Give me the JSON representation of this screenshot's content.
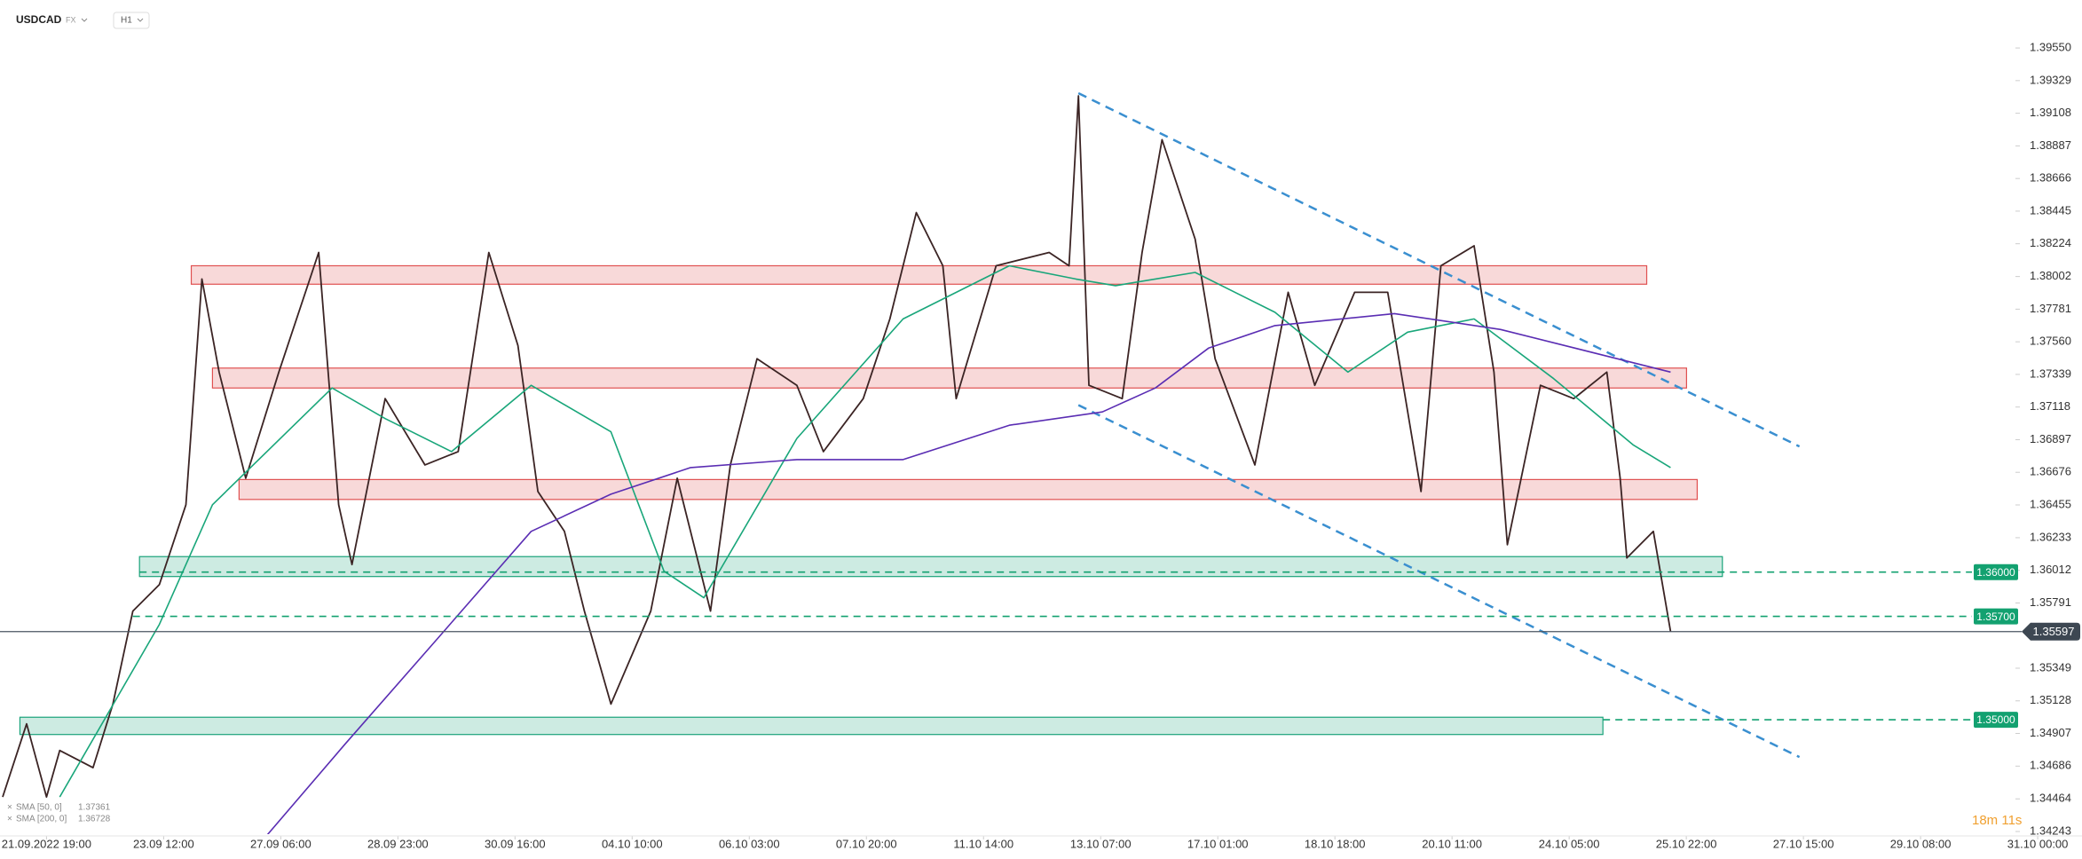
{
  "chart_data": {
    "type": "line",
    "symbol": "USDCAD",
    "market": "FX",
    "interval": "H1",
    "timer": "18m 11s",
    "xlim": [
      -0.397,
      16.81
    ],
    "ylim": [
      1.34195,
      1.39875
    ],
    "xticks": [
      {
        "value": 0,
        "label": "21.09.2022 19:00"
      },
      {
        "value": 1,
        "label": "23.09 12:00"
      },
      {
        "value": 2,
        "label": "27.09 06:00"
      },
      {
        "value": 3,
        "label": "28.09 23:00"
      },
      {
        "value": 4,
        "label": "30.09 16:00"
      },
      {
        "value": 5,
        "label": "04.10 10:00"
      },
      {
        "value": 6,
        "label": "06.10 03:00"
      },
      {
        "value": 7,
        "label": "07.10 20:00"
      },
      {
        "value": 8,
        "label": "11.10 14:00"
      },
      {
        "value": 9,
        "label": "13.10 07:00"
      },
      {
        "value": 10,
        "label": "17.10 01:00"
      },
      {
        "value": 11,
        "label": "18.10 18:00"
      },
      {
        "value": 12,
        "label": "20.10 11:00"
      },
      {
        "value": 13,
        "label": "24.10 05:00"
      },
      {
        "value": 14,
        "label": "25.10 22:00"
      },
      {
        "value": 15,
        "label": "27.10 15:00"
      },
      {
        "value": 16,
        "label": "29.10 08:00"
      },
      {
        "value": 17,
        "label": "31.10 00:00"
      }
    ],
    "yticks": [
      {
        "value": 1.3955,
        "label": "1.39550"
      },
      1.39329,
      1.39108,
      1.38887,
      1.38666,
      1.38445,
      1.38224,
      1.38002,
      1.37781,
      {
        "value": 1.3756,
        "label": "1.37560"
      },
      1.37339,
      1.37118,
      1.36897,
      1.36676,
      1.36455,
      1.36233,
      1.36012,
      1.35791,
      1.35349,
      1.35128,
      1.34907,
      1.34686,
      1.34464,
      1.34243
    ],
    "series": [
      {
        "color": "#3b2424",
        "x": [
          -0.374,
          -0.17,
          0,
          0.113,
          0.397,
          0.567,
          0.737,
          0.964,
          1.19,
          1.327,
          1.474,
          1.701,
          1.984,
          2.324,
          2.494,
          2.608,
          2.891,
          3.231,
          3.515,
          3.776,
          4.025,
          4.195,
          4.422,
          4.592,
          4.819,
          5.159,
          5.385,
          5.669,
          5.839,
          6.066,
          6.406,
          6.633,
          6.973,
          7.2,
          7.426,
          7.653,
          7.766,
          8.107,
          8.56,
          8.73,
          8.81,
          8.9,
          9.184,
          9.354,
          9.524,
          9.807,
          9.977,
          10.317,
          10.601,
          10.828,
          11.168,
          11.451,
          11.735,
          11.905,
          12.188,
          12.358,
          12.472,
          12.755,
          13.039,
          13.322,
          13.435,
          13.492,
          13.719,
          13.866
        ],
        "values": [
          1.34477,
          1.34972,
          1.34477,
          1.34792,
          1.34675,
          1.35106,
          1.35736,
          1.35916,
          1.36456,
          1.37985,
          1.37355,
          1.36636,
          1.37355,
          1.38165,
          1.36456,
          1.36051,
          1.37175,
          1.36726,
          1.36816,
          1.38165,
          1.37535,
          1.36546,
          1.36276,
          1.35736,
          1.35106,
          1.35736,
          1.36636,
          1.35736,
          1.36726,
          1.37445,
          1.37265,
          1.36816,
          1.37175,
          1.37715,
          1.38435,
          1.38075,
          1.37175,
          1.38075,
          1.38165,
          1.38075,
          1.39226,
          1.37265,
          1.37175,
          1.38165,
          1.38929,
          1.38255,
          1.37445,
          1.36726,
          1.37895,
          1.37265,
          1.37895,
          1.37895,
          1.36546,
          1.38075,
          1.3821,
          1.37355,
          1.36186,
          1.37265,
          1.37175,
          1.37355,
          1.36636,
          1.36096,
          1.36276,
          1.35597
        ]
      },
      {
        "color": "#19a67a",
        "x": [
          0.113,
          0.964,
          1.417,
          2.438,
          2.891,
          3.458,
          4.138,
          4.819,
          5.272,
          5.612,
          6.406,
          7.313,
          8.22,
          8.787,
          9.127,
          9.467,
          9.807,
          10.488,
          11.111,
          11.621,
          12.188,
          12.868,
          13.549,
          13.866
        ],
        "values": [
          1.34477,
          1.35646,
          1.36456,
          1.37247,
          1.3704,
          1.36816,
          1.37265,
          1.3695,
          1.36006,
          1.35826,
          1.36905,
          1.37715,
          1.38075,
          1.37985,
          1.3794,
          1.37985,
          1.3803,
          1.3776,
          1.37355,
          1.37625,
          1.37715,
          1.3731,
          1.3686,
          1.36708
        ]
      },
      {
        "color": "#5a2db3",
        "x": [
          1.871,
          2.551,
          3.345,
          4.138,
          4.819,
          5.499,
          6.406,
          7.313,
          8.22,
          9.014,
          9.467,
          9.921,
          10.488,
          11.508,
          12.415,
          13.322,
          13.866
        ],
        "values": [
          1.34207,
          1.34837,
          1.35556,
          1.36276,
          1.36528,
          1.36708,
          1.36762,
          1.36762,
          1.36995,
          1.37085,
          1.37247,
          1.37517,
          1.3767,
          1.37751,
          1.37643,
          1.37463,
          1.37355
        ]
      }
    ],
    "indicators": [
      {
        "name": "SMA [50, 0]",
        "value": 1.37361
      },
      {
        "name": "SMA [200, 0]",
        "value": 1.36728
      }
    ],
    "zones": [
      {
        "x": [
          1.236,
          13.662
        ],
        "y": [
          1.3795,
          1.38075
        ],
        "color": "#e05050"
      },
      {
        "x": [
          1.417,
          14.002
        ],
        "y": [
          1.37247,
          1.37382
        ],
        "color": "#e05050"
      },
      {
        "x": [
          1.644,
          14.093
        ],
        "y": [
          1.36492,
          1.36627
        ],
        "color": "#e05050"
      },
      {
        "x": [
          0.794,
          14.308
        ],
        "y": [
          1.3597,
          1.36105
        ],
        "color": "#1aa37a"
      },
      {
        "x": [
          -0.227,
          13.288
        ],
        "y": [
          1.349,
          1.35017
        ],
        "color": "#1aa37a"
      }
    ],
    "levels": [
      {
        "value": 1.36,
        "label": "1.36000",
        "x_start": 0.794
      },
      {
        "value": 1.357,
        "label": "1.35700",
        "x_start": 0.737
      },
      {
        "value": 1.35,
        "label": "1.35000",
        "x_start": 13.288
      }
    ],
    "level_color": "#13a170",
    "current_price": 1.35597,
    "trendlines": [
      {
        "x": [
          8.81,
          14.966
        ],
        "y": [
          1.39244,
          1.36851
        ]
      },
      {
        "x": [
          8.81,
          14.966
        ],
        "y": [
          1.37131,
          1.34747
        ]
      }
    ],
    "trendline_color": "#3a8fd0"
  }
}
